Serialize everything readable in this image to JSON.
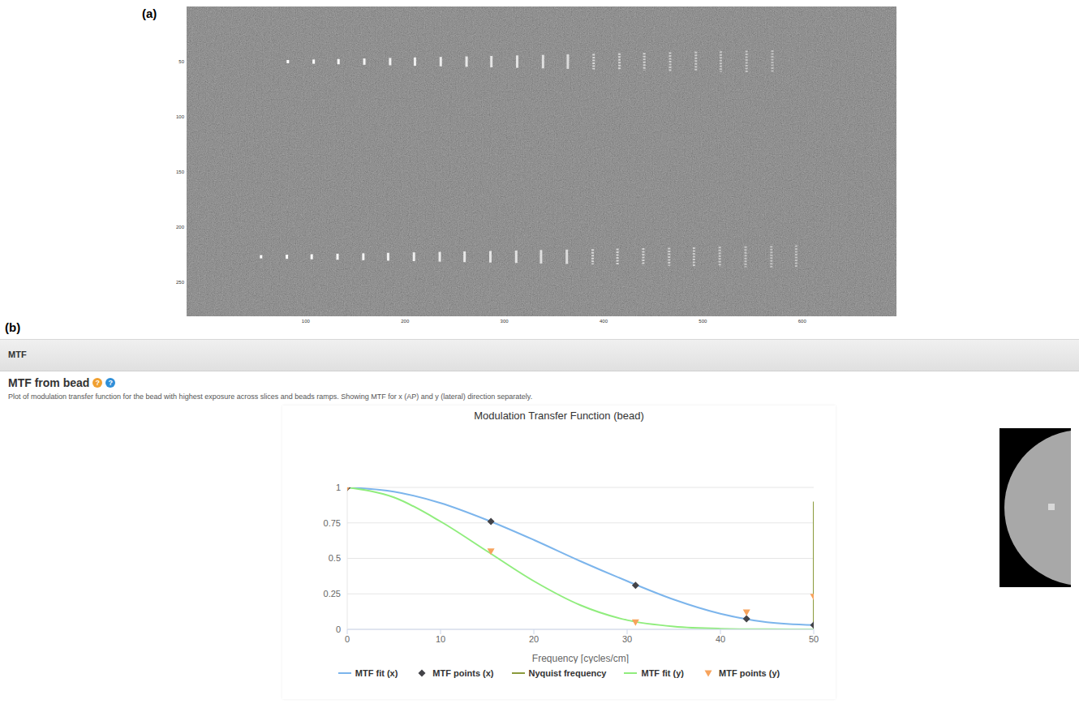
{
  "figure": {
    "panel_labels": [
      "(a)",
      "(b)"
    ],
    "image": {
      "xlim": [
        -20,
        695
      ],
      "ylim": [
        0,
        281
      ],
      "xticks": [
        100,
        200,
        300,
        400,
        500,
        600
      ],
      "yticks": [
        50,
        100,
        150,
        200,
        250
      ],
      "bead_rows": [
        {
          "y": 50,
          "x": [
            82,
            108,
            133,
            159,
            185,
            210,
            236,
            262,
            287,
            313,
            339,
            364,
            390,
            416,
            441,
            467,
            493,
            518,
            544,
            570
          ]
        },
        {
          "y": 227,
          "x": [
            55,
            81,
            106,
            132,
            158,
            183,
            209,
            235,
            260,
            286,
            312,
            337,
            363,
            389,
            414,
            440,
            466,
            491,
            517,
            543,
            569,
            594
          ]
        }
      ]
    },
    "page": {
      "section": "MTF",
      "heading": "MTF from bead",
      "help_icon": "?",
      "description": "Plot of modulation transfer function for the bead with highest exposure across slices and beads ramps. Showing MTF for x (AP) and y (lateral) direction separately."
    }
  },
  "chart_data": {
    "type": "line",
    "title": "Modulation Transfer Function (bead)",
    "x_label": "Frequency [cycles/cm]",
    "xlim": [
      0,
      50
    ],
    "xticks": [
      0,
      10,
      20,
      30,
      40,
      50
    ],
    "ylim": [
      0,
      1
    ],
    "yticks": [
      0,
      0.25,
      0.5,
      0.75,
      1
    ],
    "grid": true,
    "legend": "bottom",
    "series": [
      {
        "name": "MTF fit (x)",
        "type": "line",
        "color": "#7cb5ec",
        "x": [
          0,
          5,
          10,
          15,
          20,
          25,
          30,
          35,
          40,
          45,
          50
        ],
        "values": [
          1,
          0.97,
          0.89,
          0.77,
          0.63,
          0.48,
          0.34,
          0.21,
          0.11,
          0.05,
          0.03
        ]
      },
      {
        "name": "MTF points (x)",
        "type": "scatter",
        "marker": "diamond",
        "color": "#434348",
        "x": [
          0,
          15.4,
          30.9,
          42.8,
          50
        ],
        "values": [
          1,
          0.76,
          0.31,
          0.075,
          0.03
        ]
      },
      {
        "name": "Nyquist frequency",
        "type": "line",
        "color": "#8a9a3b",
        "x": [
          50,
          50
        ],
        "values": [
          0,
          0.9
        ]
      },
      {
        "name": "MTF fit (y)",
        "type": "line",
        "color": "#90ed7d",
        "x": [
          0,
          5,
          10,
          15,
          20,
          25,
          30,
          35,
          40,
          45,
          50
        ],
        "values": [
          1,
          0.93,
          0.76,
          0.55,
          0.34,
          0.17,
          0.065,
          0.02,
          0.005,
          0.001,
          0
        ]
      },
      {
        "name": "MTF points (y)",
        "type": "scatter",
        "marker": "triangle-down",
        "color": "#f7a35c",
        "x": [
          0,
          15.4,
          30.9,
          42.8,
          50
        ],
        "values": [
          1,
          0.55,
          0.05,
          0.12,
          0.23
        ]
      }
    ]
  }
}
